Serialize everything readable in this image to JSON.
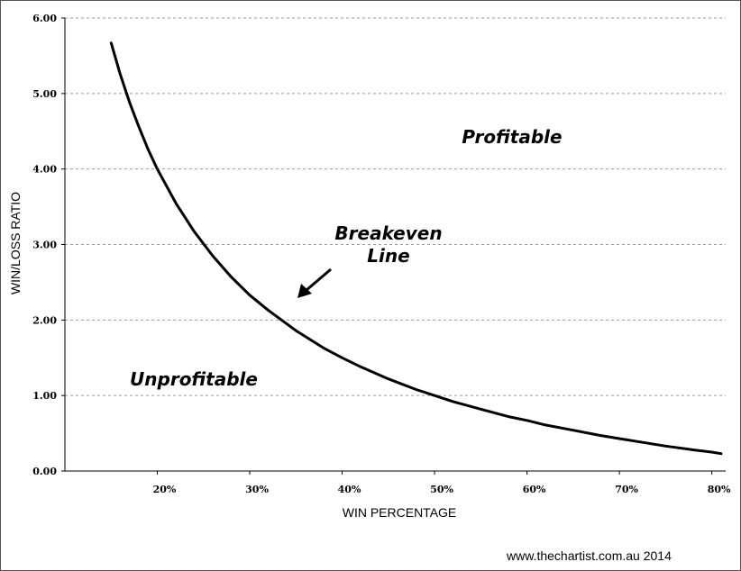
{
  "chart_data": {
    "type": "line",
    "title": "",
    "xlabel": "WIN PERCENTAGE",
    "ylabel": "WIN/LOSS RATIO",
    "xlim": [
      10,
      81.5
    ],
    "ylim": [
      0,
      6
    ],
    "x_ticks": [
      20,
      30,
      40,
      50,
      60,
      70,
      80
    ],
    "x_tick_labels": [
      "20%",
      "30%",
      "40%",
      "50%",
      "60%",
      "70%",
      "80%"
    ],
    "y_ticks": [
      0,
      1,
      2,
      3,
      4,
      5,
      6
    ],
    "y_tick_labels": [
      "0.00",
      "1.00",
      "2.00",
      "3.00",
      "4.00",
      "5.00",
      "6.00"
    ],
    "grid": "horizontal dashed",
    "series": [
      {
        "x": [
          15,
          16,
          17,
          18,
          19,
          20,
          22,
          24,
          26,
          28,
          30,
          32,
          35,
          38,
          40,
          42,
          45,
          48,
          50,
          52,
          55,
          58,
          60,
          62,
          65,
          68,
          70,
          72,
          75,
          78,
          80,
          81
        ],
        "y": [
          5.67,
          5.25,
          4.88,
          4.56,
          4.26,
          4.0,
          3.55,
          3.17,
          2.85,
          2.57,
          2.33,
          2.13,
          1.86,
          1.63,
          1.5,
          1.38,
          1.22,
          1.08,
          1.0,
          0.92,
          0.82,
          0.72,
          0.67,
          0.61,
          0.54,
          0.47,
          0.43,
          0.39,
          0.33,
          0.28,
          0.25,
          0.23
        ],
        "color": "#000000"
      }
    ],
    "annotations": {
      "profitable": "Profitable",
      "unprofitable": "Unprofitable",
      "breakeven_line1": "Breakeven",
      "breakeven_line2": "Line"
    }
  },
  "credit": "www.thechartist.com.au  2014"
}
